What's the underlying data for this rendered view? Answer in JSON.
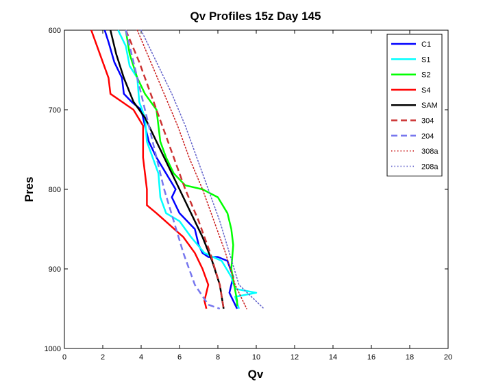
{
  "chart_data": {
    "type": "line",
    "title": "Qv Profiles 15z Day 145",
    "xlabel": "Qv",
    "ylabel": "Pres",
    "xlim": [
      0,
      20
    ],
    "ylim": [
      600,
      1000
    ],
    "y_reversed": true,
    "x_ticks": [
      0,
      2,
      4,
      6,
      8,
      10,
      12,
      14,
      16,
      18,
      20
    ],
    "y_ticks": [
      600,
      700,
      800,
      900,
      1000
    ],
    "grid": false,
    "legend_position": "top-right",
    "series": [
      {
        "name": "C1",
        "color": "#0000ff",
        "style": "solid",
        "points": [
          [
            2.1,
            600
          ],
          [
            2.3,
            615
          ],
          [
            2.6,
            640
          ],
          [
            3.0,
            660
          ],
          [
            3.1,
            680
          ],
          [
            3.5,
            690
          ],
          [
            4.0,
            700
          ],
          [
            4.2,
            720
          ],
          [
            4.4,
            740
          ],
          [
            4.8,
            760
          ],
          [
            5.3,
            780
          ],
          [
            5.8,
            800
          ],
          [
            5.6,
            810
          ],
          [
            6.0,
            830
          ],
          [
            6.8,
            850
          ],
          [
            7.0,
            870
          ],
          [
            7.2,
            880
          ],
          [
            7.5,
            885
          ],
          [
            8.0,
            885
          ],
          [
            8.5,
            890
          ],
          [
            8.8,
            910
          ],
          [
            8.6,
            930
          ],
          [
            9.0,
            950
          ]
        ]
      },
      {
        "name": "S1",
        "color": "#00ffff",
        "style": "solid",
        "points": [
          [
            2.8,
            600
          ],
          [
            3.2,
            620
          ],
          [
            3.4,
            645
          ],
          [
            3.8,
            660
          ],
          [
            3.9,
            690
          ],
          [
            4.2,
            710
          ],
          [
            4.3,
            740
          ],
          [
            4.6,
            760
          ],
          [
            4.9,
            780
          ],
          [
            5.0,
            810
          ],
          [
            5.3,
            830
          ],
          [
            6.0,
            840
          ],
          [
            6.6,
            860
          ],
          [
            7.3,
            880
          ],
          [
            8.2,
            890
          ],
          [
            8.7,
            910
          ],
          [
            8.9,
            925
          ],
          [
            10.0,
            930
          ],
          [
            8.9,
            935
          ],
          [
            9.1,
            950
          ]
        ]
      },
      {
        "name": "S2",
        "color": "#00ff00",
        "style": "solid",
        "points": [
          [
            3.2,
            600
          ],
          [
            3.4,
            630
          ],
          [
            3.8,
            660
          ],
          [
            4.2,
            680
          ],
          [
            4.8,
            700
          ],
          [
            4.9,
            720
          ],
          [
            5.0,
            740
          ],
          [
            5.3,
            760
          ],
          [
            5.7,
            780
          ],
          [
            6.3,
            795
          ],
          [
            7.2,
            800
          ],
          [
            8.0,
            810
          ],
          [
            8.5,
            830
          ],
          [
            8.7,
            850
          ],
          [
            8.8,
            870
          ],
          [
            8.7,
            900
          ],
          [
            9.0,
            940
          ],
          [
            9.0,
            947
          ]
        ]
      },
      {
        "name": "S4",
        "color": "#ff0000",
        "style": "solid",
        "points": [
          [
            1.4,
            600
          ],
          [
            1.7,
            620
          ],
          [
            2.0,
            640
          ],
          [
            2.3,
            660
          ],
          [
            2.4,
            680
          ],
          [
            3.0,
            690
          ],
          [
            3.6,
            700
          ],
          [
            4.1,
            720
          ],
          [
            4.1,
            740
          ],
          [
            4.1,
            760
          ],
          [
            4.2,
            780
          ],
          [
            4.3,
            800
          ],
          [
            4.3,
            820
          ],
          [
            4.8,
            830
          ],
          [
            5.5,
            845
          ],
          [
            6.2,
            860
          ],
          [
            6.8,
            880
          ],
          [
            7.2,
            900
          ],
          [
            7.5,
            920
          ],
          [
            7.3,
            940
          ],
          [
            7.4,
            950
          ]
        ]
      },
      {
        "name": "SAM",
        "color": "#000000",
        "style": "solid",
        "points": [
          [
            2.4,
            600
          ],
          [
            2.7,
            630
          ],
          [
            3.1,
            660
          ],
          [
            3.6,
            690
          ],
          [
            4.2,
            710
          ],
          [
            4.8,
            740
          ],
          [
            5.4,
            770
          ],
          [
            6.0,
            800
          ],
          [
            6.6,
            830
          ],
          [
            7.2,
            860
          ],
          [
            7.7,
            890
          ],
          [
            8.1,
            920
          ],
          [
            8.3,
            950
          ]
        ]
      },
      {
        "name": "304",
        "color": "#cc3333",
        "style": "dashed",
        "points": [
          [
            3.2,
            600
          ],
          [
            3.9,
            640
          ],
          [
            4.5,
            680
          ],
          [
            5.1,
            720
          ],
          [
            5.7,
            760
          ],
          [
            6.3,
            800
          ],
          [
            7.0,
            840
          ],
          [
            7.6,
            880
          ],
          [
            8.1,
            920
          ],
          [
            8.3,
            950
          ]
        ]
      },
      {
        "name": "204",
        "color": "#7777ee",
        "style": "dashed",
        "points": [
          [
            3.2,
            600
          ],
          [
            3.6,
            640
          ],
          [
            4.0,
            680
          ],
          [
            4.4,
            720
          ],
          [
            4.8,
            760
          ],
          [
            5.2,
            800
          ],
          [
            5.7,
            840
          ],
          [
            6.2,
            880
          ],
          [
            6.8,
            920
          ],
          [
            7.5,
            945
          ],
          [
            8.1,
            950
          ]
        ]
      },
      {
        "name": "308a",
        "color": "#cc2222",
        "style": "dotted",
        "points": [
          [
            3.8,
            600
          ],
          [
            4.5,
            640
          ],
          [
            5.2,
            680
          ],
          [
            5.9,
            720
          ],
          [
            6.5,
            760
          ],
          [
            7.2,
            800
          ],
          [
            7.8,
            840
          ],
          [
            8.4,
            880
          ],
          [
            8.9,
            920
          ],
          [
            9.5,
            950
          ]
        ]
      },
      {
        "name": "208a",
        "color": "#6666cc",
        "style": "dotted",
        "points": [
          [
            4.0,
            600
          ],
          [
            4.8,
            640
          ],
          [
            5.6,
            680
          ],
          [
            6.3,
            720
          ],
          [
            6.9,
            760
          ],
          [
            7.5,
            800
          ],
          [
            8.1,
            840
          ],
          [
            8.6,
            880
          ],
          [
            9.1,
            920
          ],
          [
            10.4,
            950
          ]
        ]
      }
    ]
  }
}
